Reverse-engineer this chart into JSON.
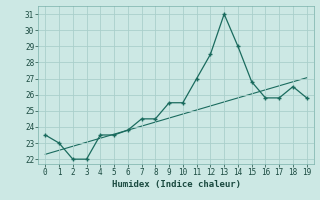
{
  "xlabel": "Humidex (Indice chaleur)",
  "x": [
    0,
    1,
    2,
    3,
    4,
    5,
    6,
    7,
    8,
    9,
    10,
    11,
    12,
    13,
    14,
    15,
    16,
    17,
    18,
    19
  ],
  "y_main": [
    23.5,
    23.0,
    22.0,
    22.0,
    23.5,
    23.5,
    23.8,
    24.5,
    24.5,
    25.5,
    25.5,
    27.0,
    28.5,
    31.0,
    29.0,
    26.8,
    25.8,
    25.8,
    26.5,
    25.8
  ],
  "y_trend": [
    22.3,
    22.55,
    22.8,
    23.05,
    23.3,
    23.55,
    23.8,
    24.05,
    24.3,
    24.55,
    24.8,
    25.05,
    25.3,
    25.55,
    25.8,
    26.05,
    26.3,
    26.55,
    26.8,
    27.05
  ],
  "line_color": "#1a6b5e",
  "bg_color": "#cce8e4",
  "grid_color": "#aacfcb",
  "ylim": [
    21.7,
    31.5
  ],
  "yticks": [
    22,
    23,
    24,
    25,
    26,
    27,
    28,
    29,
    30,
    31
  ],
  "xticks": [
    0,
    1,
    2,
    3,
    4,
    5,
    6,
    7,
    8,
    9,
    10,
    11,
    12,
    13,
    14,
    15,
    16,
    17,
    18,
    19
  ],
  "tick_fontsize": 5.5,
  "xlabel_fontsize": 6.5
}
